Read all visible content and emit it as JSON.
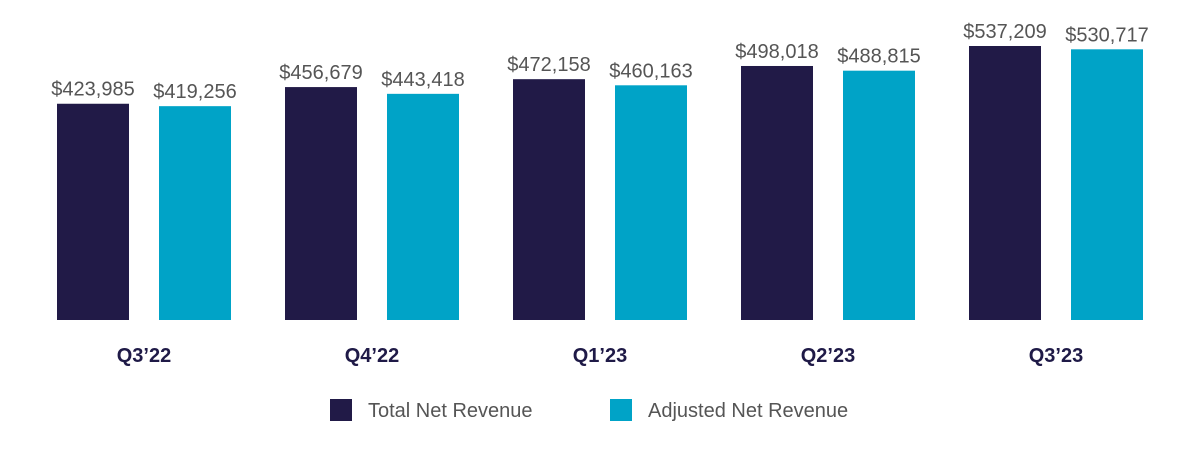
{
  "chart_data": {
    "type": "bar",
    "categories": [
      "Q3’22",
      "Q4’22",
      "Q1’23",
      "Q2’23",
      "Q3’23"
    ],
    "series": [
      {
        "name": "Total Net Revenue",
        "color": "#211a47",
        "values": [
          423985,
          456679,
          472158,
          498018,
          537209
        ],
        "labels": [
          "$423,985",
          "$456,679",
          "$472,158",
          "$498,018",
          "$537,209"
        ]
      },
      {
        "name": "Adjusted Net Revenue",
        "color": "#00a3c7",
        "values": [
          419256,
          443418,
          460163,
          488815,
          530717
        ],
        "labels": [
          "$419,256",
          "$443,418",
          "$460,163",
          "$488,815",
          "$530,717"
        ]
      }
    ],
    "ylim": [
      0,
      537209
    ],
    "grid": false,
    "legend_position": "bottom"
  }
}
